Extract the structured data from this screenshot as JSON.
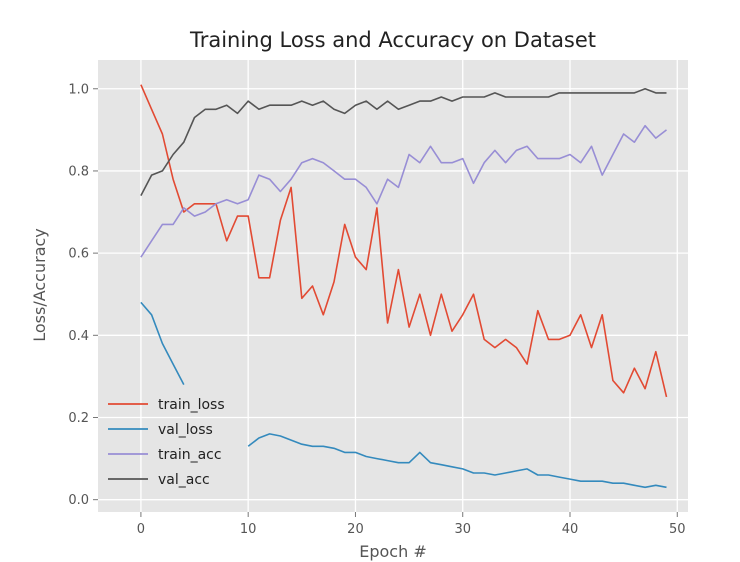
{
  "chart_data": {
    "type": "line",
    "title": "Training Loss and Accuracy on Dataset",
    "xlabel": "Epoch #",
    "ylabel": "Loss/Accuracy",
    "xlim": [
      -4,
      51
    ],
    "ylim": [
      -0.03,
      1.07
    ],
    "xticks": [
      0,
      10,
      20,
      30,
      40,
      50
    ],
    "yticks": [
      0.0,
      0.2,
      0.4,
      0.6,
      0.8,
      1.0
    ],
    "xtick_labels": [
      "0",
      "10",
      "20",
      "30",
      "40",
      "50"
    ],
    "ytick_labels": [
      "0.0",
      "0.2",
      "0.4",
      "0.6",
      "0.8",
      "1.0"
    ],
    "grid": true,
    "legend_position": "lower-left",
    "background": "#e5e5e5",
    "grid_color": "#ffffff",
    "x": [
      0,
      1,
      2,
      3,
      4,
      5,
      6,
      7,
      8,
      9,
      10,
      11,
      12,
      13,
      14,
      15,
      16,
      17,
      18,
      19,
      20,
      21,
      22,
      23,
      24,
      25,
      26,
      27,
      28,
      29,
      30,
      31,
      32,
      33,
      34,
      35,
      36,
      37,
      38,
      39,
      40,
      41,
      42,
      43,
      44,
      45,
      46,
      47,
      48,
      49
    ],
    "series": [
      {
        "name": "train_loss",
        "color": "#e24a33",
        "values": [
          1.01,
          0.95,
          0.89,
          0.78,
          0.7,
          0.72,
          0.72,
          0.72,
          0.63,
          0.69,
          0.69,
          0.54,
          0.54,
          0.68,
          0.76,
          0.49,
          0.52,
          0.45,
          0.53,
          0.67,
          0.59,
          0.56,
          0.71,
          0.43,
          0.56,
          0.42,
          0.5,
          0.4,
          0.5,
          0.41,
          0.45,
          0.5,
          0.39,
          0.37,
          0.39,
          0.37,
          0.33,
          0.46,
          0.39,
          0.39,
          0.4,
          0.45,
          0.37,
          0.45,
          0.29,
          0.26,
          0.32,
          0.27,
          0.36,
          0.25
        ]
      },
      {
        "name": "val_loss",
        "color": "#348abd",
        "values": [
          0.48,
          0.45,
          0.38,
          0.33,
          0.28,
          null,
          null,
          null,
          null,
          null,
          0.13,
          0.15,
          0.16,
          0.155,
          0.145,
          0.135,
          0.13,
          0.13,
          0.125,
          0.115,
          0.115,
          0.105,
          0.1,
          0.095,
          0.09,
          0.09,
          0.115,
          0.09,
          0.085,
          0.08,
          0.075,
          0.065,
          0.065,
          0.06,
          0.065,
          0.07,
          0.075,
          0.06,
          0.06,
          0.055,
          0.05,
          0.045,
          0.045,
          0.045,
          0.04,
          0.04,
          0.035,
          0.03,
          0.035,
          0.03
        ]
      },
      {
        "name": "train_acc",
        "color": "#988ed5",
        "values": [
          0.59,
          0.63,
          0.67,
          0.67,
          0.71,
          0.69,
          0.7,
          0.72,
          0.73,
          0.72,
          0.73,
          0.79,
          0.78,
          0.75,
          0.78,
          0.82,
          0.83,
          0.82,
          0.8,
          0.78,
          0.78,
          0.76,
          0.72,
          0.78,
          0.76,
          0.84,
          0.82,
          0.86,
          0.82,
          0.82,
          0.83,
          0.77,
          0.82,
          0.85,
          0.82,
          0.85,
          0.86,
          0.83,
          0.83,
          0.83,
          0.84,
          0.82,
          0.86,
          0.79,
          0.84,
          0.89,
          0.87,
          0.91,
          0.88,
          0.9
        ]
      },
      {
        "name": "val_acc",
        "color": "#555555",
        "values": [
          0.74,
          0.79,
          0.8,
          0.84,
          0.87,
          0.93,
          0.95,
          0.95,
          0.96,
          0.94,
          0.97,
          0.95,
          0.96,
          0.96,
          0.96,
          0.97,
          0.96,
          0.97,
          0.95,
          0.94,
          0.96,
          0.97,
          0.95,
          0.97,
          0.95,
          0.96,
          0.97,
          0.97,
          0.98,
          0.97,
          0.98,
          0.98,
          0.98,
          0.99,
          0.98,
          0.98,
          0.98,
          0.98,
          0.98,
          0.99,
          0.99,
          0.99,
          0.99,
          0.99,
          0.99,
          0.99,
          0.99,
          1.0,
          0.99,
          0.99
        ]
      }
    ]
  }
}
